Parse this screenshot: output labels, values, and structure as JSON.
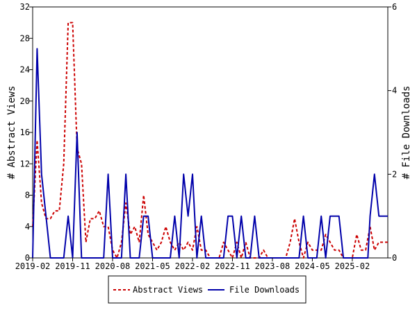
{
  "chart_data": {
    "type": "line",
    "title": "",
    "x_tick_labels": [
      "2019-02",
      "2019-11",
      "2020-08",
      "2021-05",
      "2022-02",
      "2022-11",
      "2023-08",
      "2024-05",
      "2025-02"
    ],
    "y_left": {
      "label": "# Abstract Views",
      "min": 0,
      "max": 32,
      "ticks": [
        0,
        4,
        8,
        12,
        16,
        20,
        24,
        28,
        32
      ]
    },
    "y_right": {
      "label": "# File Downloads",
      "min": 0,
      "max": 6,
      "ticks": [
        0,
        2,
        4,
        6
      ]
    },
    "grid": false,
    "legend_position": "bottom",
    "x_range_months": [
      0,
      80
    ],
    "series": [
      {
        "name": "Abstract Views",
        "axis": "left",
        "color": "#cc0000",
        "dash": true,
        "x": [
          0,
          1,
          2,
          3,
          4,
          5,
          6,
          7,
          8,
          9,
          10,
          11,
          12,
          13,
          14,
          15,
          16,
          17,
          18,
          19,
          20,
          21,
          22,
          23,
          24,
          25,
          26,
          27,
          28,
          29,
          30,
          31,
          32,
          33,
          34,
          35,
          36,
          37,
          38,
          39,
          40,
          41,
          42,
          43,
          44,
          45,
          46,
          47,
          48,
          49,
          50,
          51,
          52,
          53,
          54,
          55,
          56,
          57,
          58,
          59,
          60,
          61,
          62,
          63,
          64,
          65,
          66,
          67,
          68,
          69,
          70,
          71,
          72,
          73,
          74,
          75,
          76,
          77,
          78,
          79,
          80
        ],
        "values": [
          4,
          15,
          7,
          5,
          5,
          6,
          6,
          12,
          30,
          30,
          14,
          12,
          2,
          5,
          5,
          6,
          4,
          4,
          1,
          0,
          2,
          7,
          3,
          4,
          2,
          8,
          3,
          2,
          1,
          2,
          4,
          2,
          1,
          2,
          1,
          2,
          1,
          4,
          1,
          1,
          0,
          0,
          0,
          2,
          1,
          0,
          2,
          0,
          2,
          0,
          0,
          0,
          1,
          0,
          0,
          0,
          0,
          0,
          2,
          5,
          2,
          0,
          2,
          1,
          1,
          1,
          3,
          2,
          1,
          1,
          0,
          0,
          0,
          3,
          1,
          1,
          4,
          1,
          2,
          2,
          2
        ]
      },
      {
        "name": "File Downloads",
        "axis": "right",
        "color": "#0000aa",
        "dash": false,
        "x": [
          0,
          1,
          2,
          3,
          4,
          5,
          6,
          7,
          8,
          9,
          10,
          11,
          12,
          13,
          14,
          15,
          16,
          17,
          18,
          19,
          20,
          21,
          22,
          23,
          24,
          25,
          26,
          27,
          28,
          29,
          30,
          31,
          32,
          33,
          34,
          35,
          36,
          37,
          38,
          39,
          40,
          41,
          42,
          43,
          44,
          45,
          46,
          47,
          48,
          49,
          50,
          51,
          52,
          53,
          54,
          55,
          56,
          57,
          58,
          59,
          60,
          61,
          62,
          63,
          64,
          65,
          66,
          67,
          68,
          69,
          70,
          71,
          72,
          73,
          74,
          75,
          75.5,
          76,
          77,
          78,
          79,
          80
        ],
        "values": [
          0,
          5,
          2,
          1,
          0,
          0,
          0,
          0,
          1,
          0,
          3,
          0,
          0,
          0,
          0,
          0,
          0,
          2,
          0,
          0,
          0,
          2,
          0,
          0,
          0,
          1,
          1,
          0,
          0,
          0,
          0,
          0,
          1,
          0,
          2,
          1,
          2,
          0,
          1,
          0,
          0,
          0,
          0,
          0,
          1,
          1,
          0,
          1,
          0,
          0,
          1,
          0,
          0,
          0,
          0,
          0,
          0,
          0,
          0,
          0,
          0,
          1,
          0,
          0,
          0,
          1,
          0,
          1,
          1,
          1,
          0,
          0,
          0,
          0,
          0,
          0,
          0,
          1,
          2,
          1,
          1,
          1
        ]
      }
    ]
  }
}
